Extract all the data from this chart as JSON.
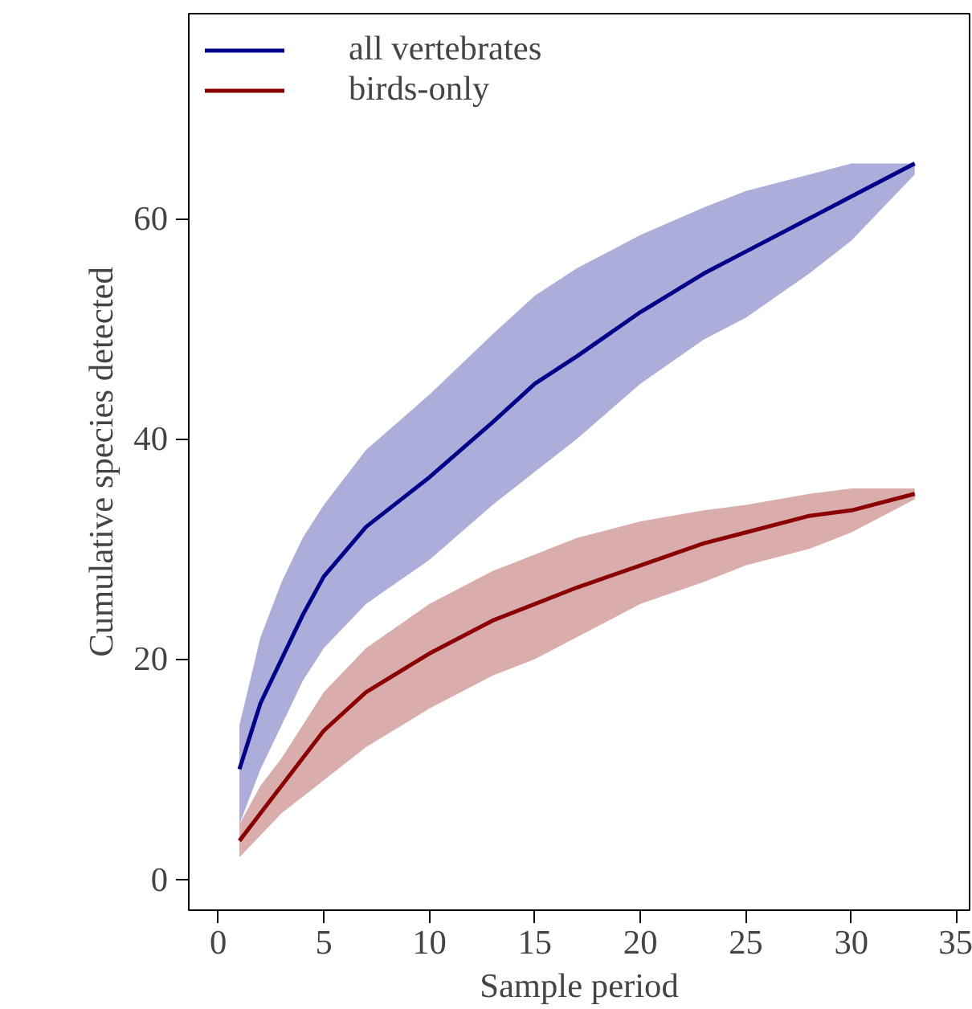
{
  "chart_data": {
    "type": "line",
    "xlabel": "Sample period",
    "ylabel": "Cumulative species detected",
    "x": [
      1,
      2,
      3,
      4,
      5,
      7,
      10,
      13,
      15,
      17,
      20,
      23,
      25,
      28,
      30,
      33
    ],
    "xlim": [
      -1.4,
      35.6
    ],
    "ylim": [
      -2.8,
      78.6
    ],
    "xticks": [
      0,
      5,
      10,
      15,
      20,
      25,
      30,
      35
    ],
    "yticks": [
      0,
      20,
      40,
      60
    ],
    "grid": false,
    "legend": "top left",
    "line_style": "solid",
    "marker": "none",
    "series": [
      {
        "name": "all vertebrates",
        "color": "#00008b",
        "values": [
          10,
          16,
          20,
          24,
          27.5,
          32,
          36.5,
          41.5,
          45,
          47.5,
          51.5,
          55,
          57,
          60,
          62,
          65
        ],
        "lower": [
          5,
          10,
          14,
          18,
          21,
          25,
          29,
          34,
          37,
          40,
          45,
          49,
          51,
          55,
          58,
          64
        ],
        "upper": [
          14,
          22,
          27,
          31,
          34,
          39,
          44,
          49.5,
          53,
          55.5,
          58.5,
          61,
          62.5,
          64,
          65,
          65
        ]
      },
      {
        "name": "birds-only",
        "color": "#8b0000",
        "values": [
          3.5,
          6,
          8.5,
          11,
          13.5,
          17,
          20.5,
          23.5,
          25,
          26.5,
          28.5,
          30.5,
          31.5,
          33,
          33.5,
          35
        ],
        "lower": [
          2,
          4,
          6,
          7.5,
          9,
          12,
          15.5,
          18.5,
          20,
          22,
          25,
          27,
          28.5,
          30,
          31.5,
          34.5
        ],
        "upper": [
          5,
          8.5,
          11,
          14,
          17,
          21,
          25,
          28,
          29.5,
          31,
          32.5,
          33.5,
          34,
          35,
          35.5,
          35.5
        ]
      }
    ]
  }
}
